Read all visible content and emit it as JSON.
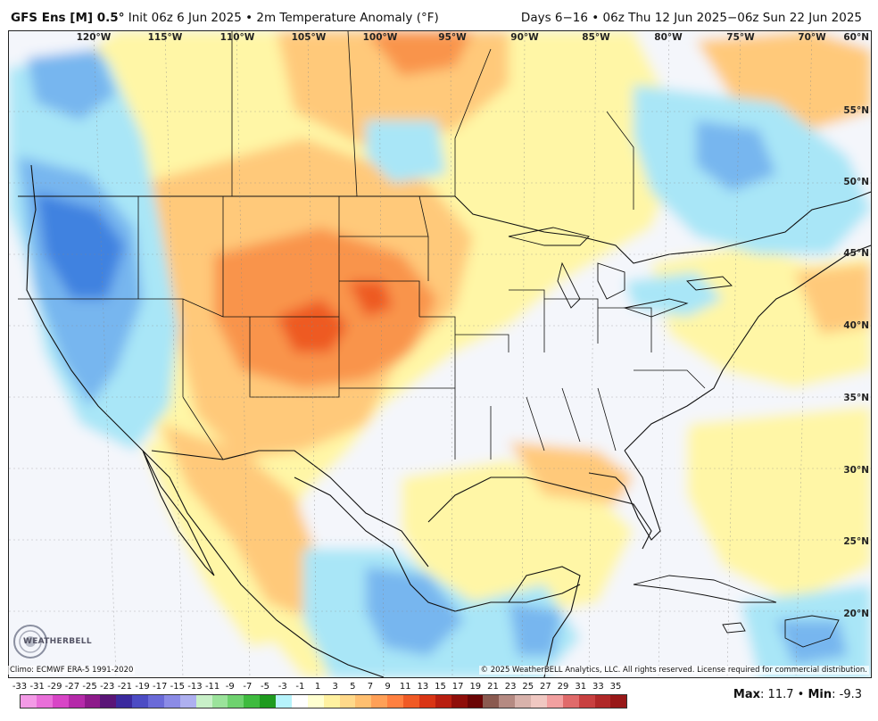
{
  "header": {
    "model": "GFS Ens [M] 0.5",
    "degree": "°",
    "init": "Init 06z 6 Jun 2025",
    "bullet": "•",
    "product": "2m Temperature Anomaly (°F)",
    "range": "Days 6−16 • 06z Thu 12 Jun 2025−06z Sun 22 Jun 2025"
  },
  "map": {
    "lon_labels": [
      "120°W",
      "115°W",
      "110°W",
      "105°W",
      "100°W",
      "95°W",
      "90°W",
      "85°W",
      "80°W",
      "75°W",
      "70°W"
    ],
    "lat_labels": [
      "60°N",
      "55°N",
      "50°N",
      "45°N",
      "40°N",
      "35°N",
      "30°N",
      "25°N",
      "20°N"
    ],
    "colors": {
      "ocean_neutral": "#f4f6fb",
      "warm_light": "#fff6a6",
      "warm_mid": "#ffc97a",
      "warm_strong": "#f9944c",
      "warm_peak": "#ee5a24",
      "cool_light": "#a9e6f7",
      "cool_mid": "#77b6ef",
      "cool_strong": "#3f82e0"
    }
  },
  "footer": {
    "climo": "Climo: ECMWF ERA-5 1991-2020",
    "copyright": "© 2025 WeatherBELL Analytics, LLC. All rights reserved. License required for commercial distribution.",
    "logo_text": "WEATHERBELL"
  },
  "colorbar": {
    "labels": [
      "-33",
      "-31",
      "-29",
      "-27",
      "-25",
      "-23",
      "-21",
      "-19",
      "-17",
      "-15",
      "-13",
      "-11",
      "-9",
      "-7",
      "-5",
      "-3",
      "-1",
      "1",
      "3",
      "5",
      "7",
      "9",
      "11",
      "13",
      "15",
      "17",
      "19",
      "21",
      "23",
      "25",
      "27",
      "29",
      "31",
      "33",
      "35"
    ],
    "colors": [
      "#f39ae6",
      "#e96fd9",
      "#d845c6",
      "#b52aa9",
      "#8d1a8a",
      "#5a1577",
      "#3b2a9e",
      "#4c4cc4",
      "#6a6ad8",
      "#8b8be6",
      "#aeb0f0",
      "#c8f0c8",
      "#9be39b",
      "#6fd26f",
      "#3fbb3f",
      "#1f9b1f",
      "#b6f3fb",
      "#ffffff",
      "#ffffd0",
      "#fff1a0",
      "#ffd98a",
      "#ffbf70",
      "#ffa057",
      "#ff8040",
      "#f05a25",
      "#d93515",
      "#b81e10",
      "#8f0e0a",
      "#6a0505",
      "#8a5a50",
      "#b58a82",
      "#d8b2ab",
      "#f0c8c2",
      "#f2a0a0",
      "#e06a6a",
      "#c84040",
      "#b02828",
      "#981818"
    ]
  },
  "stats": {
    "max_label": "Max",
    "max_value": "11.7",
    "sep": "•",
    "min_label": "Min",
    "min_value": "-9.3"
  }
}
